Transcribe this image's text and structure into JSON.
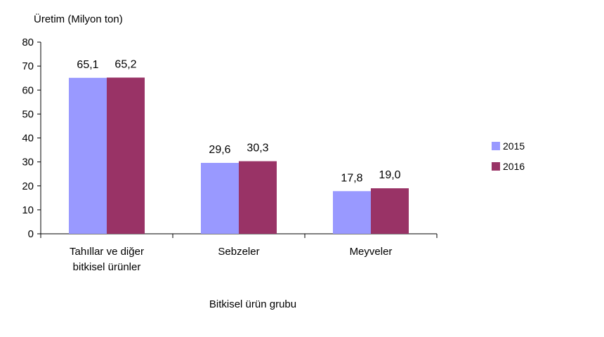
{
  "chart_data": {
    "type": "bar",
    "title": "",
    "ylabel": "Üretim (Milyon ton)",
    "xlabel": "Bitkisel ürün grubu",
    "categories": [
      [
        "Tahıllar ve diğer",
        "bitkisel ürünler"
      ],
      [
        "Sebzeler"
      ],
      [
        "Meyveler"
      ]
    ],
    "series": [
      {
        "name": "2015",
        "values": [
          65.1,
          29.6,
          17.8
        ],
        "labels": [
          "65,1",
          "29,6",
          "17,8"
        ],
        "color": "#9999ff"
      },
      {
        "name": "2016",
        "values": [
          65.2,
          30.3,
          19.0
        ],
        "labels": [
          "65,2",
          "30,3",
          "19,0"
        ],
        "color": "#993366"
      }
    ],
    "ylim": [
      0,
      80
    ],
    "yticks": [
      0,
      10,
      20,
      30,
      40,
      50,
      60,
      70,
      80
    ],
    "grid": false,
    "legend_position": "right"
  }
}
